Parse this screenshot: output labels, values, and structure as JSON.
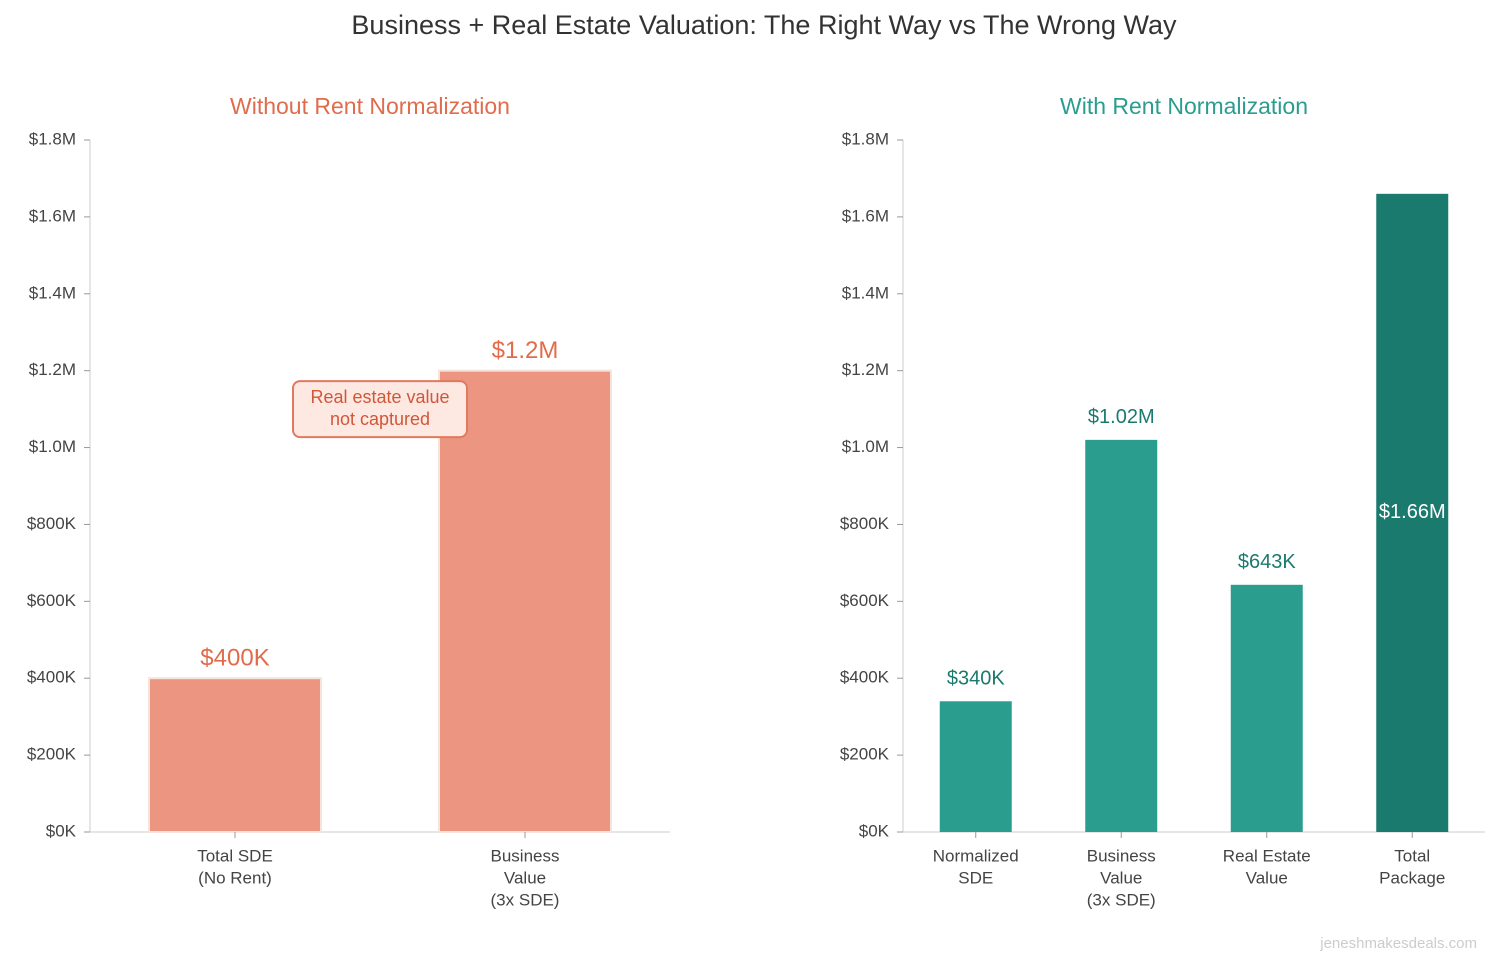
{
  "title": "Business + Real Estate Valuation: The Right Way vs The Wrong Way",
  "watermark": "jeneshmakesdeals.com",
  "chart_data": [
    {
      "type": "bar",
      "title": "Without Rent Normalization",
      "title_color": "#e06c4c",
      "categories": [
        [
          "Total SDE",
          "(No Rent)"
        ],
        [
          "Business",
          "Value",
          "(3x SDE)"
        ]
      ],
      "values": [
        400000,
        1200000
      ],
      "value_labels": [
        "$400K",
        "$1.2M"
      ],
      "colors": [
        "#ec9580",
        "#ec9580"
      ],
      "value_label_colors": [
        "#e06c4c",
        "#e06c4c"
      ],
      "ylim": [
        0,
        1800000
      ],
      "yticks": [
        {
          "value": 0,
          "label": "$0K"
        },
        {
          "value": 200000,
          "label": "$200K"
        },
        {
          "value": 400000,
          "label": "$400K"
        },
        {
          "value": 600000,
          "label": "$600K"
        },
        {
          "value": 800000,
          "label": "$800K"
        },
        {
          "value": 1000000,
          "label": "$1.0M"
        },
        {
          "value": 1200000,
          "label": "$1.2M"
        },
        {
          "value": 1400000,
          "label": "$1.4M"
        },
        {
          "value": 1600000,
          "label": "$1.6M"
        },
        {
          "value": 1800000,
          "label": "$1.8M"
        }
      ],
      "annotation": {
        "text": [
          "Real estate value",
          "not captured"
        ],
        "y": 1100000
      }
    },
    {
      "type": "bar",
      "title": "With Rent Normalization",
      "title_color": "#2a9d8f",
      "categories": [
        [
          "Normalized",
          "SDE"
        ],
        [
          "Business",
          "Value",
          "(3x SDE)"
        ],
        [
          "Real Estate",
          "Value"
        ],
        [
          "Total",
          "Package"
        ]
      ],
      "values": [
        340000,
        1020000,
        643000,
        1660000
      ],
      "value_labels": [
        "$340K",
        "$1.02M",
        "$643K",
        "$1.66M"
      ],
      "colors": [
        "#2a9d8f",
        "#2a9d8f",
        "#2a9d8f",
        "#1b7a6e"
      ],
      "value_label_colors": [
        "#1b7a6e",
        "#1b7a6e",
        "#1b7a6e",
        "#ffffff"
      ],
      "ylim": [
        0,
        1800000
      ],
      "yticks": [
        {
          "value": 0,
          "label": "$0K"
        },
        {
          "value": 200000,
          "label": "$200K"
        },
        {
          "value": 400000,
          "label": "$400K"
        },
        {
          "value": 600000,
          "label": "$600K"
        },
        {
          "value": 800000,
          "label": "$800K"
        },
        {
          "value": 1000000,
          "label": "$1.0M"
        },
        {
          "value": 1200000,
          "label": "$1.2M"
        },
        {
          "value": 1400000,
          "label": "$1.4M"
        },
        {
          "value": 1600000,
          "label": "$1.6M"
        },
        {
          "value": 1800000,
          "label": "$1.8M"
        }
      ]
    }
  ]
}
